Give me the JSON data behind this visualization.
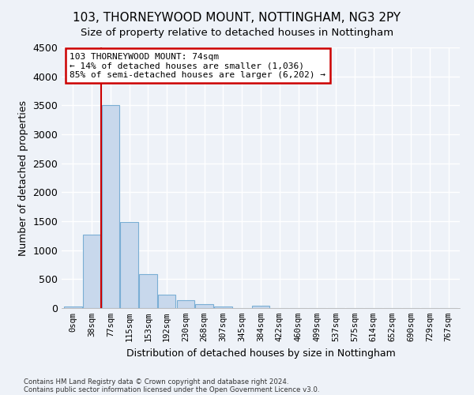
{
  "title": "103, THORNEYWOOD MOUNT, NOTTINGHAM, NG3 2PY",
  "subtitle": "Size of property relative to detached houses in Nottingham",
  "xlabel": "Distribution of detached houses by size in Nottingham",
  "ylabel": "Number of detached properties",
  "bar_labels": [
    "0sqm",
    "38sqm",
    "77sqm",
    "115sqm",
    "153sqm",
    "192sqm",
    "230sqm",
    "268sqm",
    "307sqm",
    "345sqm",
    "384sqm",
    "422sqm",
    "460sqm",
    "499sqm",
    "537sqm",
    "575sqm",
    "614sqm",
    "652sqm",
    "690sqm",
    "729sqm",
    "767sqm"
  ],
  "bar_values": [
    30,
    1270,
    3500,
    1480,
    580,
    230,
    140,
    75,
    30,
    0,
    45,
    0,
    0,
    0,
    0,
    0,
    0,
    0,
    0,
    0,
    0
  ],
  "bar_color": "#c8d8ec",
  "bar_edge_color": "#7aaed4",
  "property_line_color": "#cc0000",
  "annotation_text": "103 THORNEYWOOD MOUNT: 74sqm\n← 14% of detached houses are smaller (1,036)\n85% of semi-detached houses are larger (6,202) →",
  "annotation_box_color": "#ffffff",
  "annotation_border_color": "#cc0000",
  "ylim": [
    0,
    4500
  ],
  "background_color": "#eef2f8",
  "grid_color": "#ffffff",
  "footnote1": "Contains HM Land Registry data © Crown copyright and database right 2024.",
  "footnote2": "Contains public sector information licensed under the Open Government Licence v3.0."
}
